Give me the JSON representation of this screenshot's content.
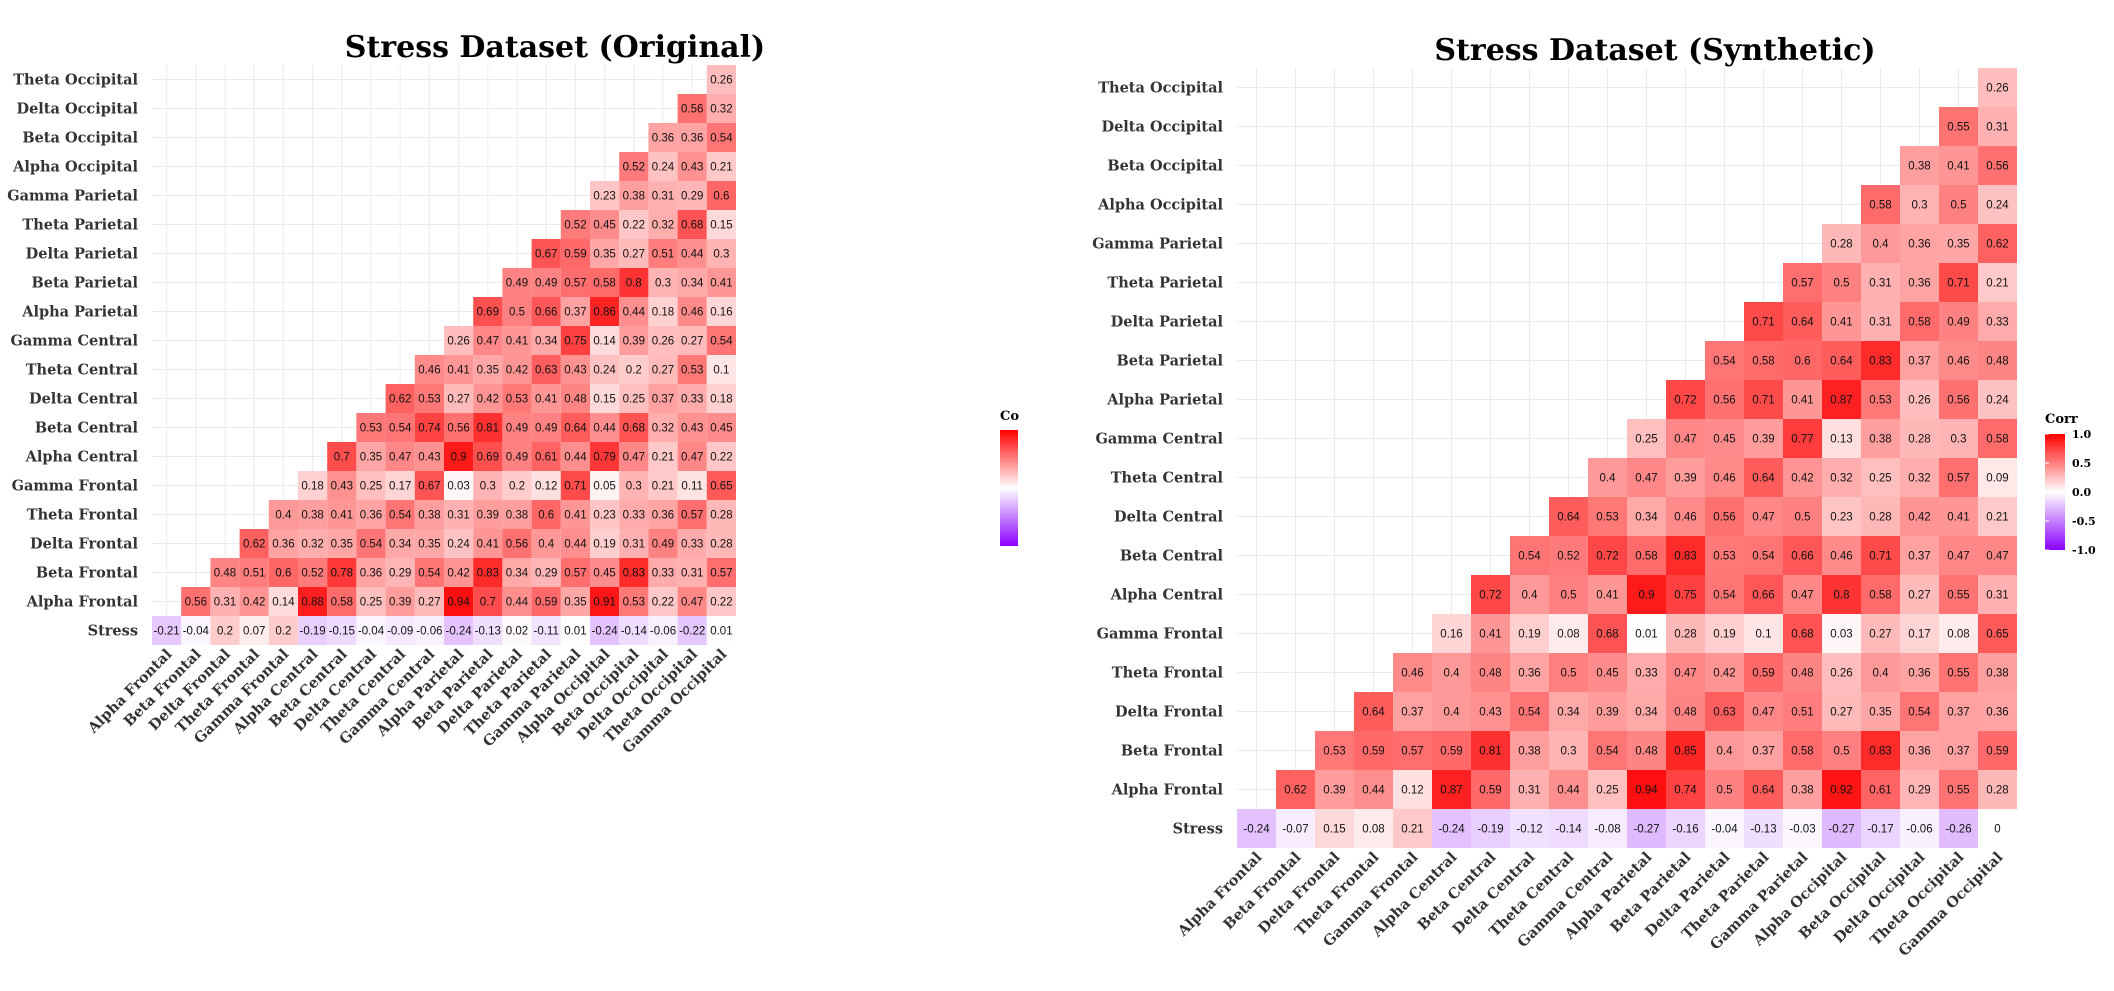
{
  "chart_data": [
    {
      "type": "heatmap",
      "title": "Stress Dataset (Original)",
      "legend_title": "Co",
      "legend_ticks": [],
      "color_scale": {
        "low": "#8b00ff",
        "mid": "#ffffff",
        "high": "#ff0000",
        "limits": [
          -1,
          1
        ]
      },
      "legend_placement": "right",
      "grid": true,
      "x_labels": [
        "Alpha Frontal",
        "Beta Frontal",
        "Delta Frontal",
        "Theta Frontal",
        "Gamma Frontal",
        "Alpha Central",
        "Beta Central",
        "Delta Central",
        "Theta Central",
        "Gamma Central",
        "Alpha Parietal",
        "Beta Parietal",
        "Delta Parietal",
        "Theta Parietal",
        "Gamma Parietal",
        "Alpha Occipital",
        "Beta Occipital",
        "Delta Occipital",
        "Theta Occipital",
        "Gamma Occipital"
      ],
      "y_labels": [
        "Theta Occipital",
        "Delta Occipital",
        "Beta Occipital",
        "Alpha Occipital",
        "Gamma Parietal",
        "Theta Parietal",
        "Delta Parietal",
        "Beta Parietal",
        "Alpha Parietal",
        "Gamma Central",
        "Theta Central",
        "Delta Central",
        "Beta Central",
        "Alpha Central",
        "Gamma Frontal",
        "Theta Frontal",
        "Delta Frontal",
        "Beta Frontal",
        "Alpha Frontal",
        "Stress"
      ],
      "rows": [
        [
          "0.26"
        ],
        [
          "0.56",
          "0.32"
        ],
        [
          "0.36",
          "0.36",
          "0.54"
        ],
        [
          "0.52",
          "0.24",
          "0.43",
          "0.21"
        ],
        [
          "0.23",
          "0.38",
          "0.31",
          "0.29",
          "0.6"
        ],
        [
          "0.52",
          "0.45",
          "0.22",
          "0.32",
          "0.68",
          "0.15"
        ],
        [
          "0.67",
          "0.59",
          "0.35",
          "0.27",
          "0.51",
          "0.44",
          "0.3"
        ],
        [
          "0.49",
          "0.49",
          "0.57",
          "0.58",
          "0.8",
          "0.3",
          "0.34",
          "0.41"
        ],
        [
          "0.69",
          "0.5",
          "0.66",
          "0.37",
          "0.86",
          "0.44",
          "0.18",
          "0.46",
          "0.16"
        ],
        [
          "0.26",
          "0.47",
          "0.41",
          "0.34",
          "0.75",
          "0.14",
          "0.39",
          "0.26",
          "0.27",
          "0.54"
        ],
        [
          "0.46",
          "0.41",
          "0.35",
          "0.42",
          "0.63",
          "0.43",
          "0.24",
          "0.2",
          "0.27",
          "0.53",
          "0.1"
        ],
        [
          "0.62",
          "0.53",
          "0.27",
          "0.42",
          "0.53",
          "0.41",
          "0.48",
          "0.15",
          "0.25",
          "0.37",
          "0.33",
          "0.18"
        ],
        [
          "0.53",
          "0.54",
          "0.74",
          "0.56",
          "0.81",
          "0.49",
          "0.49",
          "0.64",
          "0.44",
          "0.68",
          "0.32",
          "0.43",
          "0.45"
        ],
        [
          "0.7",
          "0.35",
          "0.47",
          "0.43",
          "0.9",
          "0.69",
          "0.49",
          "0.61",
          "0.44",
          "0.79",
          "0.47",
          "0.21",
          "0.47",
          "0.22"
        ],
        [
          "0.18",
          "0.43",
          "0.25",
          "0.17",
          "0.67",
          "0.03",
          "0.3",
          "0.2",
          "0.12",
          "0.71",
          "0.05",
          "0.3",
          "0.21",
          "0.11",
          "0.65"
        ],
        [
          "0.4",
          "0.38",
          "0.41",
          "0.36",
          "0.54",
          "0.38",
          "0.31",
          "0.39",
          "0.38",
          "0.6",
          "0.41",
          "0.23",
          "0.33",
          "0.36",
          "0.57",
          "0.28"
        ],
        [
          "0.62",
          "0.36",
          "0.32",
          "0.35",
          "0.54",
          "0.34",
          "0.35",
          "0.24",
          "0.41",
          "0.56",
          "0.4",
          "0.44",
          "0.19",
          "0.31",
          "0.49",
          "0.33",
          "0.28"
        ],
        [
          "0.48",
          "0.51",
          "0.6",
          "0.52",
          "0.78",
          "0.36",
          "0.29",
          "0.54",
          "0.42",
          "0.83",
          "0.34",
          "0.29",
          "0.57",
          "0.45",
          "0.83",
          "0.33",
          "0.31",
          "0.57"
        ],
        [
          "0.56",
          "0.31",
          "0.42",
          "0.14",
          "0.88",
          "0.58",
          "0.25",
          "0.39",
          "0.27",
          "0.94",
          "0.7",
          "0.44",
          "0.59",
          "0.35",
          "0.91",
          "0.53",
          "0.22",
          "0.47",
          "0.22"
        ],
        [
          "-0.21",
          "-0.04",
          "0.2",
          "0.07",
          "0.2",
          "-0.19",
          "-0.15",
          "-0.04",
          "-0.09",
          "-0.06",
          "-0.24",
          "-0.13",
          "0.02",
          "-0.11",
          "0.01",
          "-0.24",
          "-0.14",
          "-0.06",
          "-0.22",
          "0.01"
        ]
      ]
    },
    {
      "type": "heatmap",
      "title": "Stress Dataset (Synthetic)",
      "legend_title": "Corr",
      "legend_ticks": [
        "1.0",
        "0.5",
        "0.0",
        "-0.5",
        "-1.0"
      ],
      "color_scale": {
        "low": "#8b00ff",
        "mid": "#ffffff",
        "high": "#ff0000",
        "limits": [
          -1,
          1
        ]
      },
      "legend_placement": "right",
      "grid": true,
      "x_labels": [
        "Alpha Frontal",
        "Beta Frontal",
        "Delta Frontal",
        "Theta Frontal",
        "Gamma Frontal",
        "Alpha Central",
        "Beta Central",
        "Delta Central",
        "Theta Central",
        "Gamma Central",
        "Alpha Parietal",
        "Beta Parietal",
        "Delta Parietal",
        "Theta Parietal",
        "Gamma Parietal",
        "Alpha Occipital",
        "Beta Occipital",
        "Delta Occipital",
        "Theta Occipital",
        "Gamma Occipital"
      ],
      "y_labels": [
        "Theta Occipital",
        "Delta Occipital",
        "Beta Occipital",
        "Alpha Occipital",
        "Gamma Parietal",
        "Theta Parietal",
        "Delta Parietal",
        "Beta Parietal",
        "Alpha Parietal",
        "Gamma Central",
        "Theta Central",
        "Delta Central",
        "Beta Central",
        "Alpha Central",
        "Gamma Frontal",
        "Theta Frontal",
        "Delta Frontal",
        "Beta Frontal",
        "Alpha Frontal",
        "Stress"
      ],
      "rows": [
        [
          "0.26"
        ],
        [
          "0.55",
          "0.31"
        ],
        [
          "0.38",
          "0.41",
          "0.56"
        ],
        [
          "0.58",
          "0.3",
          "0.5",
          "0.24"
        ],
        [
          "0.28",
          "0.4",
          "0.36",
          "0.35",
          "0.62"
        ],
        [
          "0.57",
          "0.5",
          "0.31",
          "0.36",
          "0.71",
          "0.21"
        ],
        [
          "0.71",
          "0.64",
          "0.41",
          "0.31",
          "0.58",
          "0.49",
          "0.33"
        ],
        [
          "0.54",
          "0.58",
          "0.6",
          "0.64",
          "0.83",
          "0.37",
          "0.46",
          "0.48"
        ],
        [
          "0.72",
          "0.56",
          "0.71",
          "0.41",
          "0.87",
          "0.53",
          "0.26",
          "0.56",
          "0.24"
        ],
        [
          "0.25",
          "0.47",
          "0.45",
          "0.39",
          "0.77",
          "0.13",
          "0.38",
          "0.28",
          "0.3",
          "0.58"
        ],
        [
          "0.4",
          "0.47",
          "0.39",
          "0.46",
          "0.64",
          "0.42",
          "0.32",
          "0.25",
          "0.32",
          "0.57",
          "0.09"
        ],
        [
          "0.64",
          "0.53",
          "0.34",
          "0.46",
          "0.56",
          "0.47",
          "0.5",
          "0.23",
          "0.28",
          "0.42",
          "0.41",
          "0.21"
        ],
        [
          "0.54",
          "0.52",
          "0.72",
          "0.58",
          "0.83",
          "0.53",
          "0.54",
          "0.66",
          "0.46",
          "0.71",
          "0.37",
          "0.47",
          "0.47"
        ],
        [
          "0.72",
          "0.4",
          "0.5",
          "0.41",
          "0.9",
          "0.75",
          "0.54",
          "0.66",
          "0.47",
          "0.8",
          "0.58",
          "0.27",
          "0.55",
          "0.31"
        ],
        [
          "0.16",
          "0.41",
          "0.19",
          "0.08",
          "0.68",
          "0.01",
          "0.28",
          "0.19",
          "0.1",
          "0.68",
          "0.03",
          "0.27",
          "0.17",
          "0.08",
          "0.65"
        ],
        [
          "0.46",
          "0.4",
          "0.48",
          "0.36",
          "0.5",
          "0.45",
          "0.33",
          "0.47",
          "0.42",
          "0.59",
          "0.48",
          "0.26",
          "0.4",
          "0.36",
          "0.55",
          "0.38"
        ],
        [
          "0.64",
          "0.37",
          "0.4",
          "0.43",
          "0.54",
          "0.34",
          "0.39",
          "0.34",
          "0.48",
          "0.63",
          "0.47",
          "0.51",
          "0.27",
          "0.35",
          "0.54",
          "0.37",
          "0.36"
        ],
        [
          "0.53",
          "0.59",
          "0.57",
          "0.59",
          "0.81",
          "0.38",
          "0.3",
          "0.54",
          "0.48",
          "0.85",
          "0.4",
          "0.37",
          "0.58",
          "0.5",
          "0.83",
          "0.36",
          "0.37",
          "0.59"
        ],
        [
          "0.62",
          "0.39",
          "0.44",
          "0.12",
          "0.87",
          "0.59",
          "0.31",
          "0.44",
          "0.25",
          "0.94",
          "0.74",
          "0.5",
          "0.64",
          "0.38",
          "0.92",
          "0.61",
          "0.29",
          "0.55",
          "0.28"
        ],
        [
          "-0.24",
          "-0.07",
          "0.15",
          "0.08",
          "0.21",
          "-0.24",
          "-0.19",
          "-0.12",
          "-0.14",
          "-0.08",
          "-0.27",
          "-0.16",
          "-0.04",
          "-0.13",
          "-0.03",
          "-0.27",
          "-0.17",
          "-0.06",
          "-0.26",
          "0"
        ]
      ]
    }
  ]
}
